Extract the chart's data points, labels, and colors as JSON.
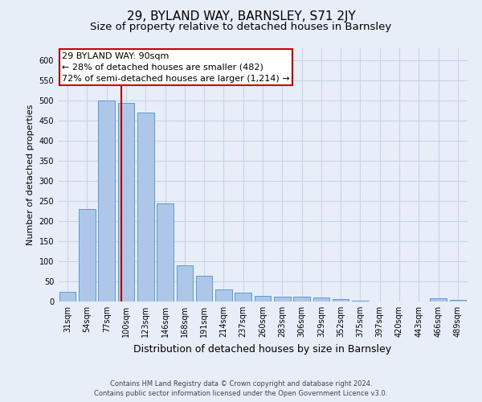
{
  "title": "29, BYLAND WAY, BARNSLEY, S71 2JY",
  "subtitle": "Size of property relative to detached houses in Barnsley",
  "xlabel": "Distribution of detached houses by size in Barnsley",
  "ylabel": "Number of detached properties",
  "footer_line1": "Contains HM Land Registry data © Crown copyright and database right 2024.",
  "footer_line2": "Contains public sector information licensed under the Open Government Licence v3.0.",
  "categories": [
    "31sqm",
    "54sqm",
    "77sqm",
    "100sqm",
    "123sqm",
    "146sqm",
    "168sqm",
    "191sqm",
    "214sqm",
    "237sqm",
    "260sqm",
    "283sqm",
    "306sqm",
    "329sqm",
    "352sqm",
    "375sqm",
    "397sqm",
    "420sqm",
    "443sqm",
    "466sqm",
    "489sqm"
  ],
  "values": [
    25,
    230,
    500,
    495,
    470,
    245,
    90,
    65,
    30,
    22,
    15,
    13,
    12,
    10,
    7,
    3,
    1,
    1,
    1,
    8,
    5
  ],
  "bar_color": "#aec6e8",
  "bar_edge_color": "#5b9bd5",
  "property_line_color": "#cc0000",
  "property_line_x": 2.75,
  "annotation_text_line1": "29 BYLAND WAY: 90sqm",
  "annotation_text_line2": "← 28% of detached houses are smaller (482)",
  "annotation_text_line3": "72% of semi-detached houses are larger (1,214) →",
  "annotation_box_facecolor": "#ffffff",
  "annotation_box_edgecolor": "#cc0000",
  "ylim": [
    0,
    630
  ],
  "yticks": [
    0,
    50,
    100,
    150,
    200,
    250,
    300,
    350,
    400,
    450,
    500,
    550,
    600
  ],
  "grid_color": "#c8d4e8",
  "background_color": "#e8eef8",
  "title_fontsize": 11,
  "subtitle_fontsize": 9.5,
  "xlabel_fontsize": 9,
  "ylabel_fontsize": 8,
  "tick_fontsize": 7,
  "annotation_fontsize": 8,
  "footer_fontsize": 6
}
